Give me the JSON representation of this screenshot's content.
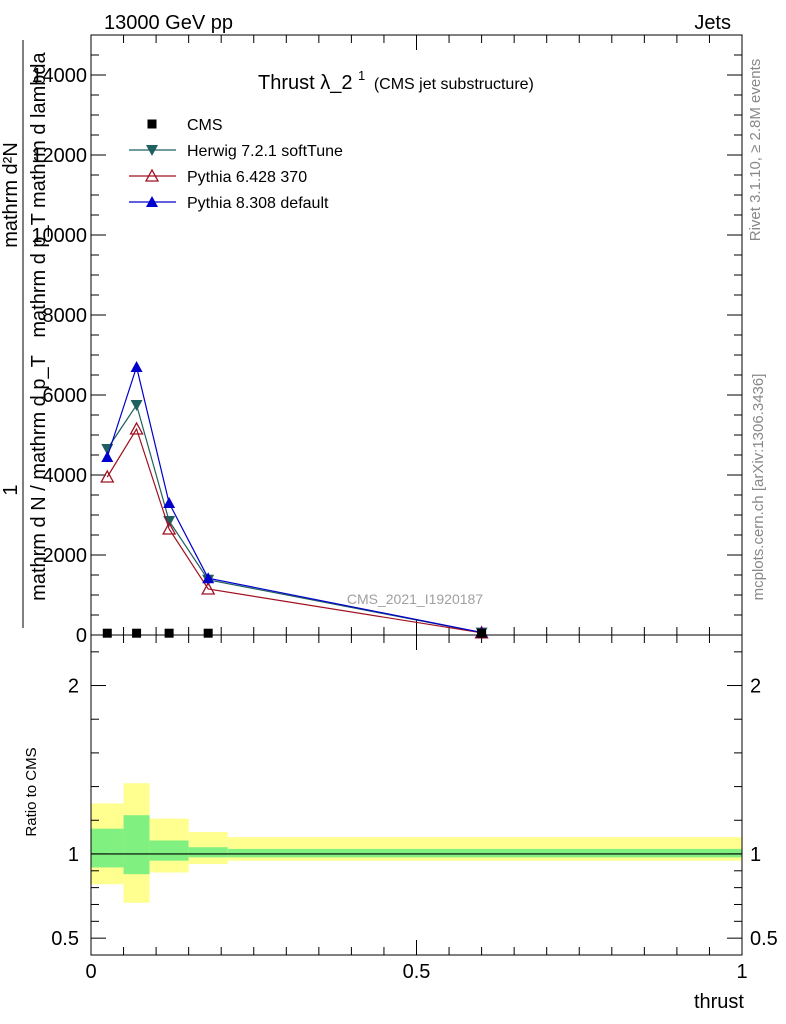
{
  "header": {
    "left": "13000 GeV pp",
    "right": "Jets"
  },
  "side_labels": {
    "rivet": "Rivet 3.1.10, ≥ 2.8M events",
    "mcplots": "mcplots.cern.ch [arXiv:1306.3436]"
  },
  "chart_data": [
    {
      "type": "line",
      "title": "Thrust λ_2",
      "title_sup": "1",
      "subtitle": "(CMS jet substructure)",
      "ylabel_top": "mathrm d²N",
      "ylabel_top2": "mathrm d p_T mathrm d lambda",
      "ylabel_bottom": "mathrm d N / mathrm d p_T",
      "ylabel_one": "1",
      "watermark": "CMS_2021_I1920187",
      "xlim": [
        0,
        1
      ],
      "ylim": [
        0,
        15000
      ],
      "yticks": [
        {
          "v": 0,
          "label": "0"
        },
        {
          "v": 2000,
          "label": "2000"
        },
        {
          "v": 4000,
          "label": "4000"
        },
        {
          "v": 6000,
          "label": "6000"
        },
        {
          "v": 8000,
          "label": "8000"
        },
        {
          "v": 10000,
          "label": "10000"
        },
        {
          "v": 12000,
          "label": "12000"
        },
        {
          "v": 14000,
          "label": "14000"
        }
      ],
      "legend": [
        {
          "name": "CMS",
          "color": "#000000",
          "marker": "square"
        },
        {
          "name": "Herwig 7.2.1 softTune",
          "color": "#1f5f5f",
          "marker": "tri-down"
        },
        {
          "name": "Pythia 6.428 370",
          "color": "#a01020",
          "marker": "tri-up-open"
        },
        {
          "name": "Pythia 8.308 default",
          "color": "#0000cc",
          "marker": "tri-up"
        }
      ],
      "series": [
        {
          "name": "CMS",
          "x": [
            0.025,
            0.07,
            0.12,
            0.18,
            0.6
          ],
          "y": [
            45,
            45,
            45,
            45,
            45
          ]
        },
        {
          "name": "Herwig 7.2.1 softTune",
          "x": [
            0.025,
            0.07,
            0.12,
            0.18,
            0.6
          ],
          "y": [
            4650,
            5750,
            2850,
            1380,
            60
          ]
        },
        {
          "name": "Pythia 6.428 370",
          "x": [
            0.025,
            0.07,
            0.12,
            0.18,
            0.6
          ],
          "y": [
            3950,
            5150,
            2650,
            1150,
            55
          ]
        },
        {
          "name": "Pythia 8.308 default",
          "x": [
            0.025,
            0.07,
            0.12,
            0.18,
            0.6
          ],
          "y": [
            4450,
            6700,
            3300,
            1420,
            62
          ]
        }
      ]
    },
    {
      "type": "area",
      "ylabel": "Ratio to CMS",
      "xlabel": "thrust",
      "xlim": [
        0,
        1
      ],
      "ylim": [
        0.4,
        2.3
      ],
      "xticks": [
        {
          "v": 0,
          "label": "0"
        },
        {
          "v": 0.5,
          "label": "0.5"
        },
        {
          "v": 1,
          "label": "1"
        }
      ],
      "yticks": [
        {
          "v": 0.5,
          "label": "0.5"
        },
        {
          "v": 1,
          "label": "1"
        },
        {
          "v": 2,
          "label": "2"
        }
      ],
      "bands": [
        {
          "x0": 0.0,
          "x1": 0.05,
          "inner": [
            0.92,
            1.15
          ],
          "outer": [
            0.82,
            1.3
          ]
        },
        {
          "x0": 0.05,
          "x1": 0.09,
          "inner": [
            0.88,
            1.23
          ],
          "outer": [
            0.71,
            1.42
          ]
        },
        {
          "x0": 0.09,
          "x1": 0.15,
          "inner": [
            0.96,
            1.08
          ],
          "outer": [
            0.89,
            1.21
          ]
        },
        {
          "x0": 0.15,
          "x1": 0.21,
          "inner": [
            0.98,
            1.04
          ],
          "outer": [
            0.94,
            1.13
          ]
        },
        {
          "x0": 0.21,
          "x1": 1.0,
          "inner": [
            0.98,
            1.03
          ],
          "outer": [
            0.96,
            1.1
          ]
        }
      ],
      "colors": {
        "inner": "#80f080",
        "outer": "#ffff90"
      }
    }
  ]
}
